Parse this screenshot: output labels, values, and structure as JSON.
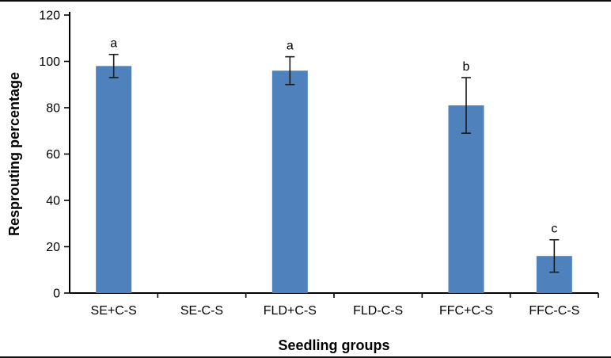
{
  "chart_data": {
    "type": "bar",
    "title": "",
    "xlabel": "Seedling groups",
    "ylabel": "Resprouting percentage",
    "categories": [
      "SE+C-S",
      "SE-C-S",
      "FLD+C-S",
      "FLD-C-S",
      "FFC+C-S",
      "FFC-C-S"
    ],
    "values": [
      98,
      0,
      96,
      0,
      81,
      16
    ],
    "error_bars": [
      5,
      0,
      6,
      0,
      12,
      7
    ],
    "significance_letters": [
      "a",
      "",
      "a",
      "",
      "b",
      "c"
    ],
    "ylim": [
      0,
      120
    ],
    "yticks": [
      0,
      20,
      40,
      60,
      80,
      100,
      120
    ],
    "grid": false,
    "legend_position": "none",
    "bar_color": "#4f81bd",
    "axis_color": "#000000",
    "error_bar_color": "#1a1a1a"
  }
}
